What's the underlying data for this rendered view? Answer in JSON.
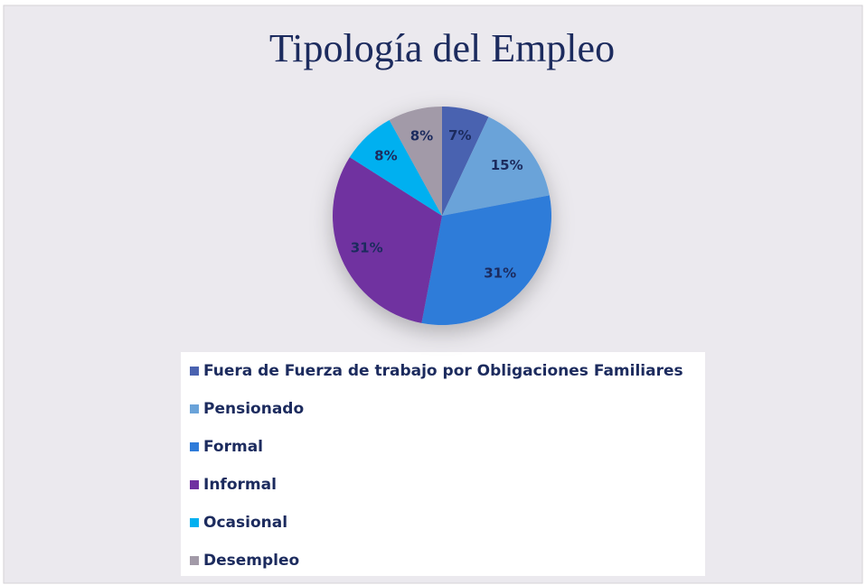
{
  "chart_data": {
    "type": "pie",
    "title": "Tipología del Empleo",
    "categories": [
      "Fuera de Fuerza de trabajo por Obligaciones Familiares",
      "Pensionado",
      "Formal",
      "Informal",
      "Ocasional",
      "Desempleo"
    ],
    "values": [
      7,
      15,
      31,
      31,
      8,
      8
    ],
    "value_labels": [
      "7%",
      "15%",
      "31%",
      "31%",
      "8%",
      "8%"
    ],
    "colors": [
      "#4a62b0",
      "#6aa3d9",
      "#2e7bd9",
      "#7030a0",
      "#00b0f0",
      "#a29aa8"
    ],
    "legend": "bottom"
  }
}
